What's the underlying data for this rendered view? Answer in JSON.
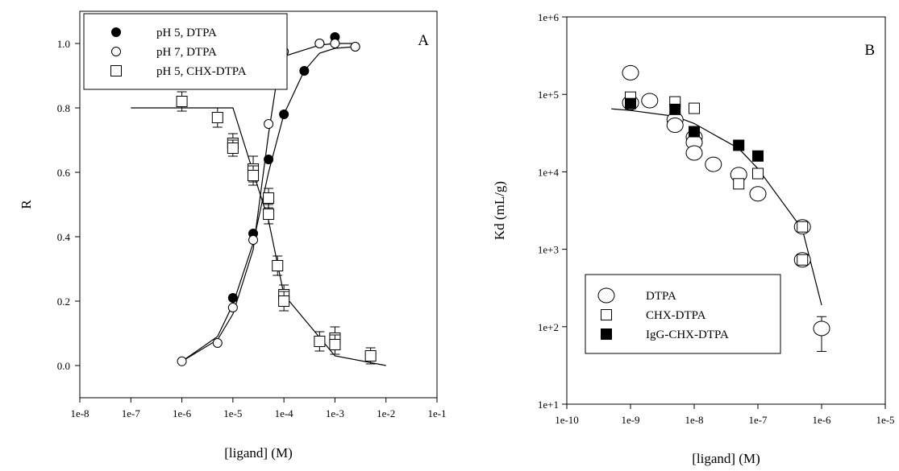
{
  "chart_data": [
    {
      "type": "scatter",
      "panel_label": "A",
      "xlabel": "[ligand] (M)",
      "ylabel": "R",
      "xscale": "log",
      "xlim": [
        1e-08,
        0.1
      ],
      "ylim": [
        -0.1,
        1.1
      ],
      "x_ticks": [
        1e-08,
        1e-07,
        1e-06,
        1e-05,
        0.0001,
        0.001,
        0.01,
        0.1
      ],
      "x_tick_labels": [
        "1e-8",
        "1e-7",
        "1e-6",
        "1e-5",
        "1e-4",
        "1e-3",
        "1e-2",
        "1e-1"
      ],
      "y_ticks": [
        0.0,
        0.2,
        0.4,
        0.6,
        0.8,
        1.0
      ],
      "y_tick_labels": [
        "0.0",
        "0.2",
        "0.4",
        "0.6",
        "0.8",
        "1.0"
      ],
      "legend_position": "top-left",
      "series": [
        {
          "name": "pH 5, DTPA",
          "marker": "filled-circle",
          "x": [
            1e-05,
            2.5e-05,
            5e-05,
            0.0001,
            0.00025,
            0.0005,
            0.001,
            0.0025
          ],
          "y": [
            0.21,
            0.41,
            0.64,
            0.78,
            0.915,
            1.0,
            1.02,
            0.99
          ]
        },
        {
          "name": "pH 7, DTPA",
          "marker": "open-circle",
          "x": [
            1e-06,
            5e-06,
            1e-05,
            2.5e-05,
            5e-05,
            7.5e-05,
            0.0001,
            0.0005,
            0.001,
            0.0025
          ],
          "y": [
            0.013,
            0.07,
            0.18,
            0.39,
            0.75,
            0.975,
            0.975,
            1.0,
            1.0,
            0.99
          ]
        },
        {
          "name": "pH 5, CHX-DTPA",
          "marker": "open-square",
          "x": [
            1e-06,
            5e-06,
            1e-05,
            1e-05,
            2.5e-05,
            2.5e-05,
            5e-05,
            5e-05,
            7.5e-05,
            0.0001,
            0.0001,
            0.0005,
            0.001,
            0.001,
            0.005
          ],
          "y": [
            0.82,
            0.77,
            0.69,
            0.675,
            0.61,
            0.59,
            0.52,
            0.47,
            0.31,
            0.22,
            0.2,
            0.075,
            0.085,
            0.065,
            0.03
          ],
          "err": [
            0.03,
            0.03,
            0.03,
            0.025,
            0.04,
            0.03,
            0.03,
            0.03,
            0.03,
            0.03,
            0.03,
            0.03,
            0.035,
            0.03,
            0.025
          ]
        }
      ],
      "fit_lines": [
        {
          "series": "pH 5, DTPA",
          "x": [
            1e-06,
            5e-06,
            1e-05,
            2.5e-05,
            5e-05,
            0.0001,
            0.00025,
            0.0005,
            0.001,
            0.0025
          ],
          "y": [
            0.013,
            0.09,
            0.19,
            0.38,
            0.6,
            0.78,
            0.915,
            0.97,
            0.985,
            0.99
          ]
        },
        {
          "series": "pH 7, DTPA",
          "x": [
            1e-06,
            5e-06,
            1e-05,
            2.5e-05,
            5e-05,
            7.5e-05,
            0.0001,
            0.0005,
            0.001,
            0.0025
          ],
          "y": [
            0.013,
            0.08,
            0.16,
            0.36,
            0.72,
            0.9,
            0.96,
            0.995,
            1.0,
            1.0
          ]
        },
        {
          "series": "pH 5, CHX-DTPA",
          "x": [
            1e-07,
            1e-06,
            1e-05,
            2.5e-05,
            5e-05,
            0.0001,
            0.001,
            0.01
          ],
          "y": [
            0.8,
            0.8,
            0.8,
            0.6,
            0.45,
            0.22,
            0.03,
            0.0
          ]
        }
      ]
    },
    {
      "type": "scatter",
      "panel_label": "B",
      "xlabel": "[ligand] (M)",
      "ylabel": "Kd (mL/g)",
      "xscale": "log",
      "yscale": "log",
      "xlim": [
        1e-10,
        1e-05
      ],
      "ylim": [
        10,
        1000000
      ],
      "x_ticks": [
        1e-10,
        1e-09,
        1e-08,
        1e-07,
        1e-06,
        1e-05
      ],
      "x_tick_labels": [
        "1e-10",
        "1e-9",
        "1e-8",
        "1e-7",
        "1e-6",
        "1e-5"
      ],
      "y_ticks": [
        10,
        100,
        1000,
        10000,
        100000,
        1000000
      ],
      "y_tick_labels": [
        "1e+1",
        "1e+2",
        "1e+3",
        "1e+4",
        "1e+5",
        "1e+6"
      ],
      "legend_position": "bottom-left",
      "series": [
        {
          "name": "DTPA",
          "marker": "open-circle",
          "x": [
            1e-09,
            1e-09,
            2e-09,
            5e-09,
            5e-09,
            1e-08,
            1e-08,
            1e-08,
            2e-08,
            5e-08,
            1e-07,
            5e-07,
            5e-07,
            1e-06
          ],
          "y": [
            190000,
            78000,
            83000,
            47000,
            40000,
            28000,
            24000,
            17500,
            12500,
            9200,
            5200,
            1950,
            730,
            95
          ],
          "err": [
            null,
            null,
            null,
            null,
            null,
            null,
            null,
            null,
            null,
            null,
            null,
            null,
            null,
            [
              48,
              135
            ]
          ]
        },
        {
          "name": "CHX-DTPA",
          "marker": "open-square",
          "x": [
            1e-09,
            5e-09,
            1e-08,
            5e-08,
            1e-07,
            5e-07,
            5e-07
          ],
          "y": [
            92000,
            80000,
            66000,
            7000,
            9500,
            1950,
            730
          ]
        },
        {
          "name": "IgG-CHX-DTPA",
          "marker": "filled-square",
          "x": [
            1e-09,
            5e-09,
            1e-08,
            5e-08,
            1e-07
          ],
          "y": [
            76000,
            64000,
            33000,
            22000,
            16000
          ]
        }
      ],
      "fit_lines": [
        {
          "x": [
            5e-10,
            1e-09,
            5e-09,
            1e-08,
            5e-08,
            1e-07,
            5e-07,
            1e-06
          ],
          "y": [
            65000,
            62000,
            52000,
            42000,
            20000,
            11000,
            1800,
            190
          ]
        }
      ]
    }
  ]
}
